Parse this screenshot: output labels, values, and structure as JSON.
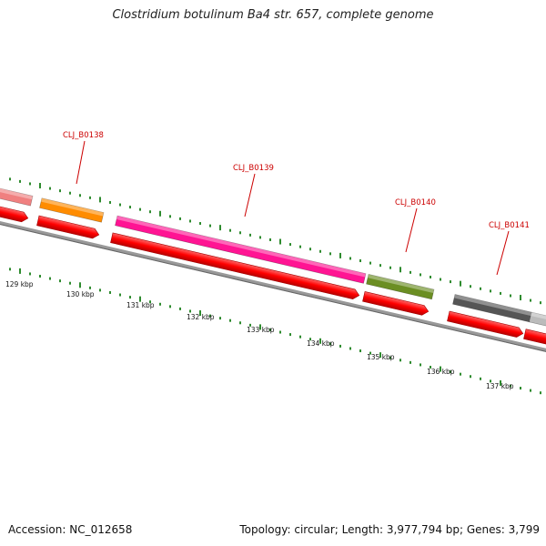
{
  "title": "Clostridium botulinum Ba4 str. 657, complete genome",
  "accession": "Accession: NC_012658",
  "summary": "Topology: circular; Length: 3,977,794 bp; Genes: 3,799",
  "colors": {
    "backbone": "#888888",
    "tick": "#2e8b2e",
    "cds": "#ff0000",
    "label": "#cc0000"
  },
  "kbp_labels": [
    "129 kbp",
    "130 kbp",
    "131 kbp",
    "132 kbp",
    "133 kbp",
    "134 kbp",
    "135 kbp",
    "136 kbp",
    "137 kbp"
  ],
  "genes": [
    {
      "name": "",
      "color": "#f08080"
    },
    {
      "name": "CLJ_B0138",
      "color": "#ff8c00"
    },
    {
      "name": "CLJ_B0139",
      "color": "#ff1493"
    },
    {
      "name": "CLJ_B0140",
      "color": "#6b8e23"
    },
    {
      "name": "CLJ_B0141",
      "color": "#555555"
    },
    {
      "name": "",
      "color": "#bbbbbb"
    }
  ]
}
